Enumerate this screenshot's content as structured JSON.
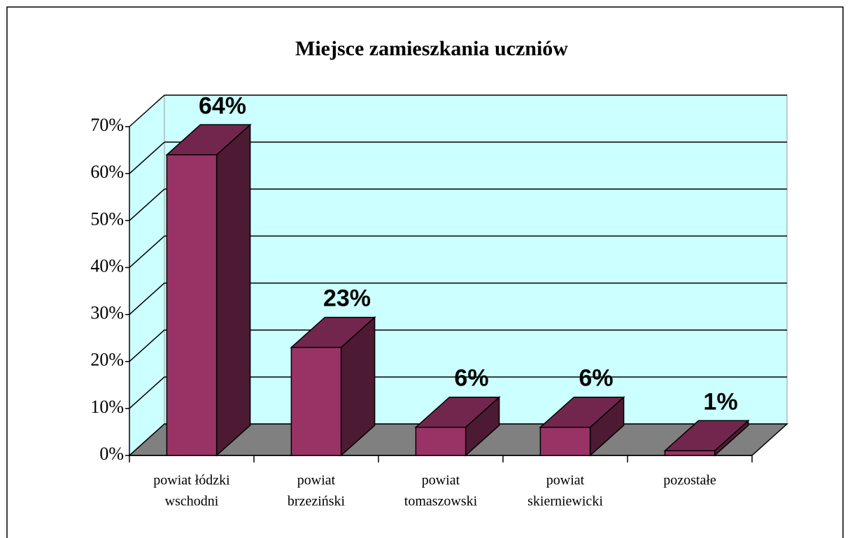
{
  "chart_data": {
    "type": "bar3d",
    "title": "Miejsce zamieszkania uczniów",
    "categories": [
      [
        "powiat łódzki",
        "wschodni"
      ],
      [
        "powiat",
        "brzeziński"
      ],
      [
        "powiat",
        "tomaszowski"
      ],
      [
        "powiat",
        "skierniewicki"
      ],
      [
        "pozostałe"
      ]
    ],
    "values": [
      64,
      23,
      6,
      6,
      1
    ],
    "value_labels": [
      "64%",
      "23%",
      "6%",
      "6%",
      "1%"
    ],
    "color": "#993366",
    "ylim": [
      0,
      70
    ],
    "yticks": [
      {
        "value": 0,
        "label": "0%"
      },
      {
        "value": 10,
        "label": "10%"
      },
      {
        "value": 20,
        "label": "20%"
      },
      {
        "value": 30,
        "label": "30%"
      },
      {
        "value": 40,
        "label": "40%"
      },
      {
        "value": 50,
        "label": "50%"
      },
      {
        "value": 60,
        "label": "60%"
      },
      {
        "value": 70,
        "label": "70%"
      }
    ],
    "grid": true
  }
}
